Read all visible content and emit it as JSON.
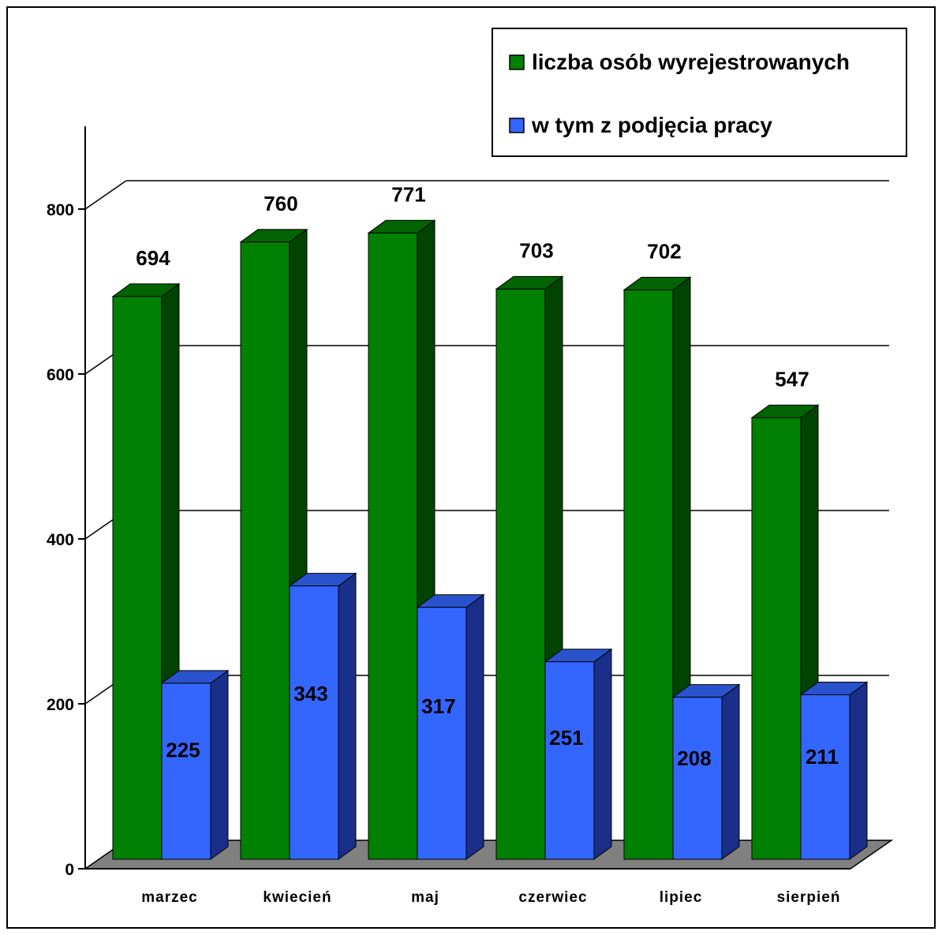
{
  "chart_data": {
    "type": "bar",
    "categories": [
      "marzec",
      "kwiecień",
      "maj",
      "czerwiec",
      "lipiec",
      "sierpień"
    ],
    "series": [
      {
        "name": "liczba osób wyrejestrowanych",
        "values": [
          694,
          760,
          771,
          703,
          702,
          547
        ],
        "color": "#008000",
        "side_color": "#004400",
        "top_color": "#006400"
      },
      {
        "name": "w tym z podjęcia pracy",
        "values": [
          225,
          343,
          317,
          251,
          208,
          211
        ],
        "color": "#3366ff",
        "side_color": "#1a2f8a",
        "top_color": "#2952cc"
      }
    ],
    "ylim": [
      0,
      800
    ],
    "yticks": [
      0,
      200,
      400,
      600,
      800
    ],
    "grid": true,
    "legend_position": "top-right",
    "floor_color": "#808080"
  }
}
